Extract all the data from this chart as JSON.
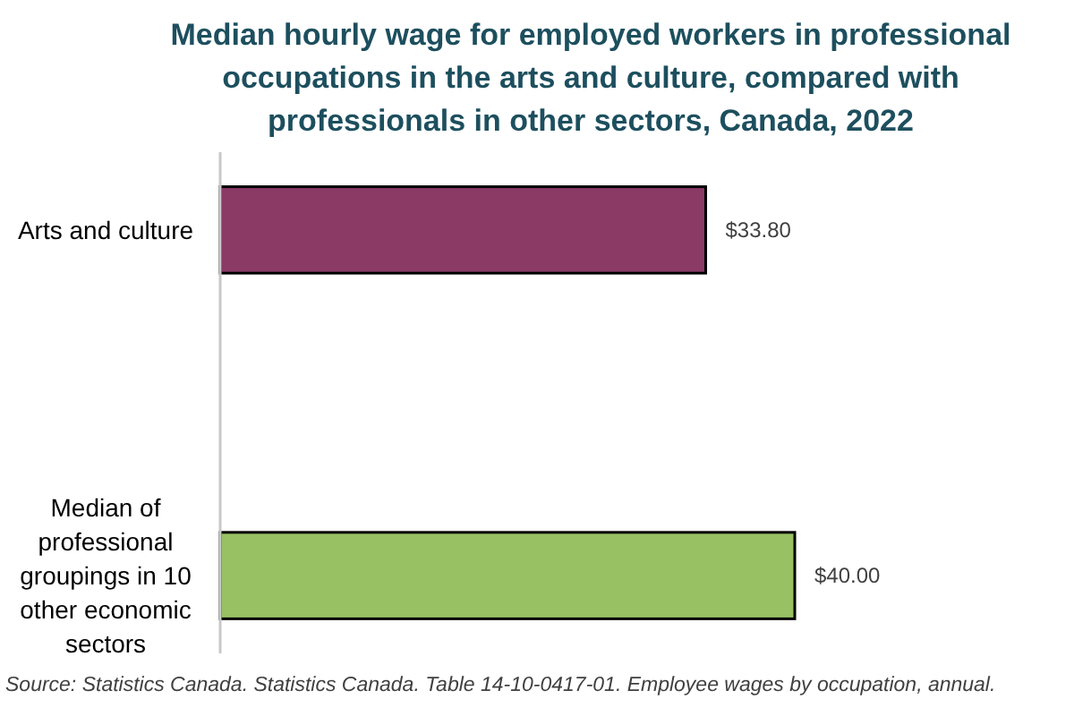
{
  "chart_data": {
    "type": "bar",
    "orientation": "horizontal",
    "title": "Median hourly wage for employed workers in professional occupations in the arts and culture, compared with professionals in other sectors, Canada, 2022",
    "categories": [
      "Arts and culture",
      "Median of professional groupings in 10 other economic sectors"
    ],
    "values": [
      33.8,
      40.0
    ],
    "colors": [
      "#8b3a66",
      "#98c163"
    ],
    "value_labels": [
      "$33.80",
      "$40.00"
    ],
    "annotations": [
      "Source: Statistics Canada. Statistics Canada. Table 14-10-0417-01. Employee wages by occupation, annual."
    ]
  }
}
